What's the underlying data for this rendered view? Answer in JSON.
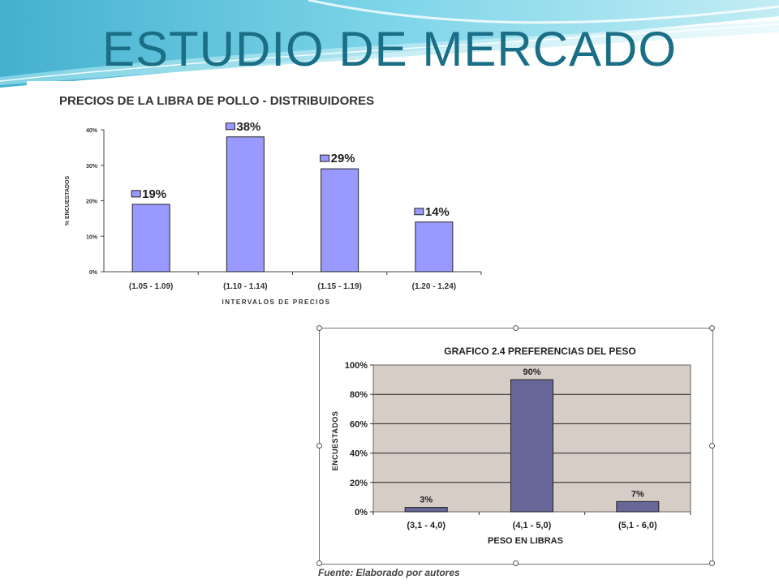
{
  "slide": {
    "title": "ESTUDIO DE MERCADO",
    "source_note": "Fuente: Elaborado por autores"
  },
  "colors": {
    "title": "#1a6e86",
    "chart1_bar": "#9999ff",
    "chart2_bar": "#666699",
    "chart2_plot_bg": "#d6cdc7"
  },
  "chart_data": [
    {
      "type": "bar",
      "title": "PRECIOS DE LA LIBRA DE POLLO - DISTRIBUIDORES",
      "xlabel": "INTERVALOS DE PRECIOS",
      "ylabel": "% ENCUESTADOS",
      "categories": [
        "(1.05 - 1.09)",
        "(1.10 - 1.14)",
        "(1.15 - 1.19)",
        "(1.20 - 1.24)"
      ],
      "values": [
        19,
        38,
        29,
        14
      ],
      "data_labels": [
        "19%",
        "38%",
        "29%",
        "14%"
      ],
      "ylim": [
        0,
        40
      ],
      "yticks": [
        "0%",
        "10%",
        "20%",
        "30%",
        "40%"
      ],
      "grid": false,
      "legend": "data-label markers"
    },
    {
      "type": "bar",
      "title": "GRAFICO 2.4 PREFERENCIAS DEL PESO",
      "xlabel": "PESO EN LIBRAS",
      "ylabel": "ENCUESTADOS",
      "categories": [
        "(3,1 - 4,0)",
        "(4,1 - 5,0)",
        "(5,1 - 6,0)"
      ],
      "values": [
        3,
        90,
        7
      ],
      "data_labels": [
        "3%",
        "90%",
        "7%"
      ],
      "ylim": [
        0,
        100
      ],
      "yticks": [
        "0%",
        "20%",
        "40%",
        "60%",
        "80%",
        "100%"
      ],
      "grid": true,
      "legend": "none"
    }
  ]
}
